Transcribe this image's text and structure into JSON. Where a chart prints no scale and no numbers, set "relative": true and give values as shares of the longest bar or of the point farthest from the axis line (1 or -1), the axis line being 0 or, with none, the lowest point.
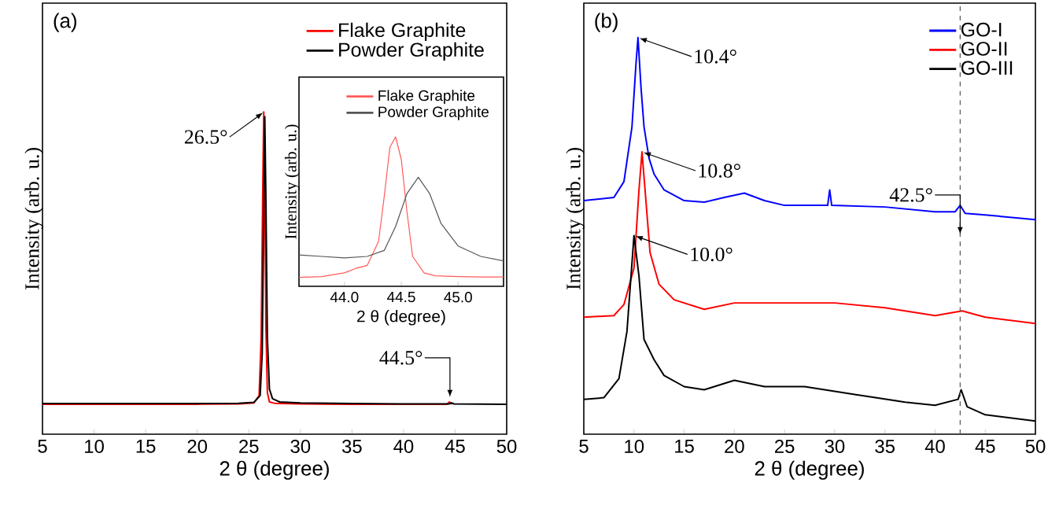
{
  "chart_data": [
    {
      "type": "line",
      "relative": true,
      "xlabel": "2 θ (degree)",
      "ylabel": "Intensity (arb. u.)",
      "xlim": [
        5,
        50
      ],
      "xticks": [
        5,
        10,
        15,
        20,
        25,
        30,
        35,
        40,
        45,
        50
      ],
      "tick_labels": "x",
      "legend": "top right",
      "annotations": [
        "(a)",
        {
          "text": "26.5°",
          "x": 26.5,
          "y": 1.0
        },
        {
          "text": "44.5°",
          "x": 44.5,
          "y": 0.11
        }
      ],
      "series": [
        {
          "name": "Flake Graphite",
          "color": "#ff0000",
          "x": [
            5,
            10,
            15,
            20,
            24,
            25.5,
            26.0,
            26.2,
            26.35,
            26.45,
            26.55,
            26.65,
            26.8,
            27.0,
            27.5,
            30,
            35,
            40,
            44.2,
            44.45,
            44.7
          ],
          "values": [
            0.093,
            0.093,
            0.093,
            0.093,
            0.094,
            0.097,
            0.12,
            0.3,
            0.75,
            1.0,
            0.8,
            0.35,
            0.13,
            0.1,
            0.096,
            0.094,
            0.093,
            0.093,
            0.093,
            0.1,
            0.093
          ]
        },
        {
          "name": "Powder Graphite",
          "color": "#000000",
          "x": [
            5,
            10,
            15,
            20,
            24,
            25.5,
            26.1,
            26.3,
            26.45,
            26.55,
            26.65,
            26.8,
            27.0,
            27.3,
            28,
            30,
            35,
            40,
            44.4,
            44.65,
            44.9,
            50
          ],
          "values": [
            0.095,
            0.095,
            0.095,
            0.095,
            0.096,
            0.099,
            0.12,
            0.25,
            0.7,
            0.985,
            0.75,
            0.3,
            0.14,
            0.11,
            0.1,
            0.097,
            0.095,
            0.094,
            0.094,
            0.097,
            0.094,
            0.093
          ]
        }
      ]
    },
    {
      "type": "line",
      "relative": true,
      "xlabel": "2 θ (degree)",
      "ylabel": "Intensity (arb. u.)",
      "xlim": [
        43.6,
        45.4
      ],
      "xticks": [
        {
          "value": 44,
          "label": "44.0"
        },
        {
          "value": 44.5,
          "label": "44.5"
        },
        {
          "value": 45,
          "label": "45.0"
        }
      ],
      "tick_labels": "x",
      "legend": "top right",
      "series": [
        {
          "name": "Flake Graphite",
          "color": "#ff5a5a",
          "x": [
            43.6,
            43.8,
            44.0,
            44.1,
            44.2,
            44.3,
            44.35,
            44.4,
            44.45,
            44.5,
            44.55,
            44.6,
            44.7,
            44.8,
            45.0,
            45.2,
            45.4
          ],
          "values": [
            0.06,
            0.065,
            0.09,
            0.12,
            0.14,
            0.3,
            0.6,
            0.93,
            1.0,
            0.85,
            0.5,
            0.2,
            0.09,
            0.07,
            0.065,
            0.063,
            0.062
          ]
        },
        {
          "name": "Powder Graphite",
          "color": "#555555",
          "x": [
            43.6,
            43.8,
            44.0,
            44.2,
            44.35,
            44.45,
            44.55,
            44.65,
            44.75,
            44.85,
            45.0,
            45.2,
            45.4
          ],
          "values": [
            0.21,
            0.2,
            0.19,
            0.2,
            0.24,
            0.4,
            0.62,
            0.73,
            0.62,
            0.42,
            0.27,
            0.2,
            0.17
          ]
        }
      ]
    },
    {
      "type": "line",
      "relative": true,
      "xlabel": "2 θ (degree)",
      "ylabel": "Intensity (arb. u.)",
      "xlim": [
        5,
        50
      ],
      "xticks": [
        5,
        10,
        15,
        20,
        25,
        30,
        35,
        40,
        45,
        50
      ],
      "tick_labels": "x",
      "legend": "top right",
      "annotations": [
        "(b)",
        {
          "text": "10.4°",
          "x": 10.4,
          "y": 1.0
        },
        {
          "text": "10.8°",
          "x": 10.8,
          "y": 0.712
        },
        {
          "text": "10.0°",
          "x": 10.0,
          "y": 0.501
        },
        {
          "text": "42.5°",
          "x": 42.5,
          "y": 0.5
        }
      ],
      "ref_lines": [
        {
          "axis": "x",
          "value": 42.5,
          "color": "#555555",
          "line_style": "dashed"
        }
      ],
      "series": [
        {
          "name": "GO-I",
          "color": "#0000ff",
          "x": [
            5,
            8,
            9,
            9.8,
            10.2,
            10.4,
            10.7,
            11,
            11.5,
            12,
            13,
            15,
            17,
            19,
            21,
            23,
            25,
            29.3,
            29.5,
            29.7,
            35,
            40,
            42,
            42.5,
            43,
            45,
            50
          ],
          "values": [
            0.589,
            0.597,
            0.637,
            0.775,
            0.934,
            1.0,
            0.874,
            0.775,
            0.696,
            0.656,
            0.616,
            0.589,
            0.585,
            0.597,
            0.608,
            0.589,
            0.577,
            0.577,
            0.616,
            0.577,
            0.573,
            0.561,
            0.561,
            0.577,
            0.557,
            0.553,
            0.541
          ]
        },
        {
          "name": "GO-II",
          "color": "#ff0000",
          "x": [
            5,
            8,
            9,
            10,
            10.5,
            10.8,
            11.1,
            11.6,
            12.5,
            14,
            17,
            20,
            25,
            30,
            35,
            40,
            42.7,
            45,
            50
          ],
          "values": [
            0.295,
            0.299,
            0.327,
            0.419,
            0.617,
            0.712,
            0.617,
            0.458,
            0.378,
            0.339,
            0.315,
            0.331,
            0.331,
            0.331,
            0.319,
            0.299,
            0.311,
            0.295,
            0.279
          ]
        },
        {
          "name": "GO-III",
          "color": "#000000",
          "x": [
            5,
            7,
            8.5,
            9.3,
            10,
            10.5,
            11,
            12,
            13,
            15,
            17,
            20,
            23,
            27,
            32,
            37,
            40,
            42.3,
            42.6,
            43.2,
            45,
            50
          ],
          "values": [
            0.088,
            0.092,
            0.14,
            0.259,
            0.501,
            0.398,
            0.239,
            0.188,
            0.148,
            0.12,
            0.112,
            0.136,
            0.12,
            0.12,
            0.1,
            0.081,
            0.073,
            0.088,
            0.112,
            0.069,
            0.049,
            0.033
          ]
        }
      ]
    }
  ]
}
